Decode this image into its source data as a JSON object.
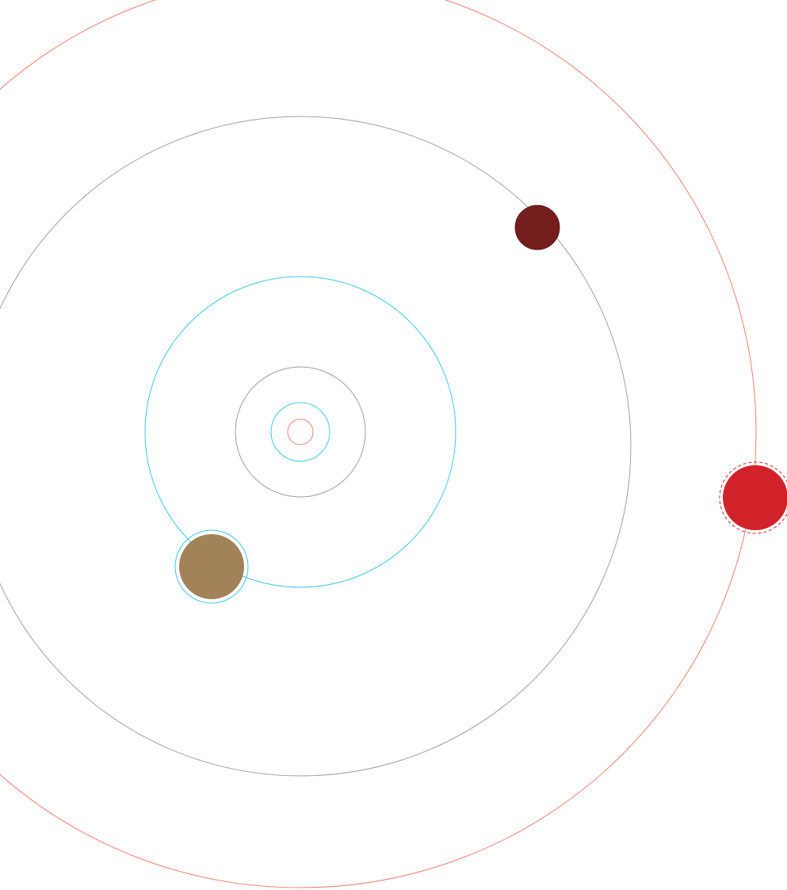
{
  "colors": {
    "background": "#ffffff",
    "orbit_red": "#f08070",
    "orbit_gray": "#a0a0a0",
    "orbit_cyan": "#3cc8e8",
    "planet_darkred": "#741e1e",
    "planet_tan": "#a28258",
    "planet_red": "#d22229",
    "ring_cyan": "#3cc8e8",
    "ring_red_dashed": "#d22229"
  },
  "orbits": [
    {
      "name": "innermost-red-orbit",
      "color_key": "orbit_red"
    },
    {
      "name": "inner-cyan-orbit",
      "color_key": "orbit_cyan"
    },
    {
      "name": "small-gray-orbit",
      "color_key": "orbit_gray"
    },
    {
      "name": "middle-cyan-orbit",
      "color_key": "orbit_cyan"
    },
    {
      "name": "large-gray-orbit",
      "color_key": "orbit_gray"
    },
    {
      "name": "outer-red-orbit",
      "color_key": "orbit_red"
    }
  ],
  "planets": [
    {
      "name": "dark-red-planet",
      "color_key": "planet_darkred"
    },
    {
      "name": "tan-planet",
      "color_key": "planet_tan",
      "ring": "solid-cyan"
    },
    {
      "name": "red-planet",
      "color_key": "planet_red",
      "ring": "dashed-red"
    }
  ]
}
